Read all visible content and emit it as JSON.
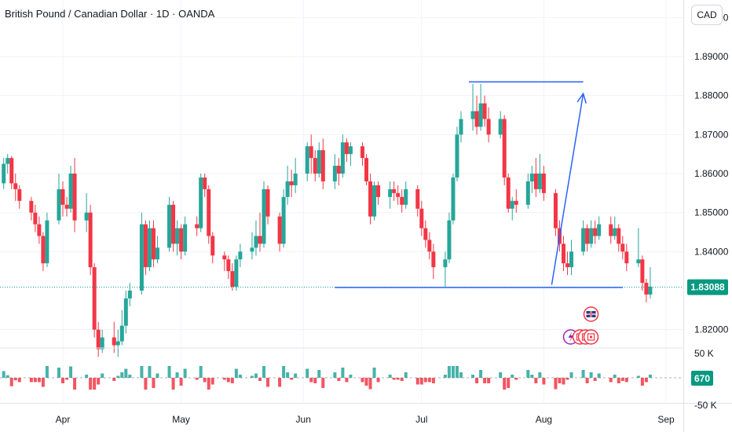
{
  "header": {
    "title": "British Pound / Canadian Dollar · 1D · OANDA",
    "currency_button": "CAD"
  },
  "colors": {
    "up": "#26a69a",
    "down": "#f23645",
    "drawing": "#2962ff",
    "price_tag": "#089981",
    "grid": "#f0f3fa"
  },
  "chart_data": {
    "type": "candlestick",
    "y_axis": {
      "range": [
        1.8155,
        1.9045
      ],
      "ticks": [
        "1.90000",
        "1.89000",
        "1.88000",
        "1.87000",
        "1.86000",
        "1.85000",
        "1.84000",
        "1.82000"
      ]
    },
    "x_axis": {
      "ticks": [
        {
          "label": "Apr",
          "date": "2025-04-01"
        },
        {
          "label": "May",
          "date": "2025-05-01"
        },
        {
          "label": "Jun",
          "date": "2025-06-01"
        },
        {
          "label": "Jul",
          "date": "2025-07-01"
        },
        {
          "label": "Aug",
          "date": "2025-08-01"
        },
        {
          "label": "Sep",
          "date": "2025-09-01"
        }
      ]
    },
    "last_price": "1.83088",
    "volume": {
      "ticks": [
        "50 K",
        "-50 K"
      ],
      "last_value": "670"
    },
    "annotations": {
      "resistance_level": 1.8835,
      "support_level": 1.8308,
      "target_arrow": {
        "from": [
          "2025-08-03",
          1.8315
        ],
        "to": [
          "2025-08-11",
          1.8805
        ]
      }
    },
    "candles": [
      [
        "2025-03-13",
        1.858,
        1.862,
        1.854,
        1.86
      ],
      [
        "2025-03-14",
        1.86,
        1.861,
        1.8565,
        1.8575
      ],
      [
        "2025-03-17",
        1.8575,
        1.864,
        1.856,
        1.8625
      ],
      [
        "2025-03-18",
        1.8625,
        1.865,
        1.86,
        1.864
      ],
      [
        "2025-03-19",
        1.864,
        1.8645,
        1.856,
        1.8575
      ],
      [
        "2025-03-20",
        1.8575,
        1.86,
        1.853,
        1.856
      ],
      [
        "2025-03-21",
        1.856,
        1.857,
        1.851,
        1.853
      ],
      [
        "2025-03-24",
        1.853,
        1.854,
        1.848,
        1.85
      ],
      [
        "2025-03-25",
        1.85,
        1.852,
        1.845,
        1.847
      ],
      [
        "2025-03-26",
        1.847,
        1.849,
        1.842,
        1.844
      ],
      [
        "2025-03-27",
        1.844,
        1.845,
        1.835,
        1.837
      ],
      [
        "2025-03-28",
        1.837,
        1.85,
        1.836,
        1.848
      ],
      [
        "2025-03-31",
        1.848,
        1.86,
        1.847,
        1.856
      ],
      [
        "2025-04-01",
        1.856,
        1.858,
        1.849,
        1.852
      ],
      [
        "2025-04-02",
        1.852,
        1.854,
        1.849,
        1.851
      ],
      [
        "2025-04-03",
        1.851,
        1.862,
        1.85,
        1.86
      ],
      [
        "2025-04-04",
        1.86,
        1.864,
        1.845,
        1.848
      ],
      [
        "2025-04-07",
        1.848,
        1.855,
        1.845,
        1.85
      ],
      [
        "2025-04-08",
        1.85,
        1.852,
        1.834,
        1.836
      ],
      [
        "2025-04-09",
        1.836,
        1.837,
        1.818,
        1.82
      ],
      [
        "2025-04-10",
        1.82,
        1.822,
        1.813,
        1.815
      ],
      [
        "2025-04-11",
        1.815,
        1.82,
        1.814,
        1.818
      ],
      [
        "2025-04-14",
        1.818,
        1.822,
        1.814,
        1.816
      ],
      [
        "2025-04-15",
        1.816,
        1.82,
        1.813,
        1.817
      ],
      [
        "2025-04-16",
        1.817,
        1.825,
        1.816,
        1.821
      ],
      [
        "2025-04-17",
        1.821,
        1.83,
        1.819,
        1.828
      ],
      [
        "2025-04-18",
        1.828,
        1.832,
        1.826,
        1.83
      ],
      [
        "2025-04-21",
        1.83,
        1.85,
        1.829,
        1.847
      ],
      [
        "2025-04-22",
        1.847,
        1.848,
        1.834,
        1.836
      ],
      [
        "2025-04-23",
        1.836,
        1.848,
        1.835,
        1.846
      ],
      [
        "2025-04-24",
        1.846,
        1.848,
        1.836,
        1.838
      ],
      [
        "2025-04-25",
        1.838,
        1.844,
        1.837,
        1.841
      ],
      [
        "2025-04-28",
        1.841,
        1.854,
        1.84,
        1.852
      ],
      [
        "2025-04-29",
        1.852,
        1.853,
        1.84,
        1.842
      ],
      [
        "2025-04-30",
        1.842,
        1.848,
        1.839,
        1.846
      ],
      [
        "2025-05-01",
        1.846,
        1.847,
        1.838,
        1.84
      ],
      [
        "2025-05-02",
        1.84,
        1.849,
        1.839,
        1.847
      ],
      [
        "2025-05-05",
        1.847,
        1.849,
        1.844,
        1.846
      ],
      [
        "2025-05-06",
        1.846,
        1.86,
        1.845,
        1.859
      ],
      [
        "2025-05-07",
        1.859,
        1.86,
        1.854,
        1.856
      ],
      [
        "2025-05-08",
        1.856,
        1.857,
        1.842,
        1.844
      ],
      [
        "2025-05-09",
        1.844,
        1.845,
        1.837,
        1.839
      ],
      [
        "2025-05-12",
        1.839,
        1.84,
        1.835,
        1.838
      ],
      [
        "2025-05-13",
        1.838,
        1.839,
        1.833,
        1.835
      ],
      [
        "2025-05-14",
        1.835,
        1.837,
        1.83,
        1.831
      ],
      [
        "2025-05-15",
        1.831,
        1.839,
        1.83,
        1.838
      ],
      [
        "2025-05-16",
        1.838,
        1.842,
        1.836,
        1.84
      ],
      [
        "2025-05-19",
        1.84,
        1.845,
        1.838,
        1.841
      ],
      [
        "2025-05-20",
        1.841,
        1.848,
        1.839,
        1.844
      ],
      [
        "2025-05-21",
        1.844,
        1.85,
        1.84,
        1.842
      ],
      [
        "2025-05-22",
        1.842,
        1.858,
        1.841,
        1.856
      ],
      [
        "2025-05-23",
        1.856,
        1.857,
        1.847,
        1.849
      ],
      [
        "2025-05-26",
        1.849,
        1.85,
        1.84,
        1.842
      ],
      [
        "2025-05-27",
        1.842,
        1.856,
        1.841,
        1.854
      ],
      [
        "2025-05-28",
        1.854,
        1.862,
        1.852,
        1.858
      ],
      [
        "2025-05-29",
        1.858,
        1.861,
        1.854,
        1.857
      ],
      [
        "2025-05-30",
        1.857,
        1.864,
        1.855,
        1.86
      ],
      [
        "2025-06-02",
        1.86,
        1.868,
        1.858,
        1.867
      ],
      [
        "2025-06-03",
        1.867,
        1.87,
        1.86,
        1.864
      ],
      [
        "2025-06-04",
        1.864,
        1.866,
        1.858,
        1.86
      ],
      [
        "2025-06-05",
        1.86,
        1.868,
        1.859,
        1.866
      ],
      [
        "2025-06-06",
        1.866,
        1.869,
        1.856,
        1.858
      ],
      [
        "2025-06-09",
        1.858,
        1.865,
        1.856,
        1.862
      ],
      [
        "2025-06-10",
        1.862,
        1.864,
        1.857,
        1.86
      ],
      [
        "2025-06-11",
        1.86,
        1.87,
        1.859,
        1.868
      ],
      [
        "2025-06-12",
        1.868,
        1.869,
        1.863,
        1.865
      ],
      [
        "2025-06-13",
        1.865,
        1.868,
        1.862,
        1.867
      ],
      [
        "2025-06-16",
        1.867,
        1.868,
        1.862,
        1.864
      ],
      [
        "2025-06-17",
        1.864,
        1.865,
        1.857,
        1.858
      ],
      [
        "2025-06-18",
        1.858,
        1.86,
        1.847,
        1.849
      ],
      [
        "2025-06-19",
        1.849,
        1.858,
        1.848,
        1.857
      ],
      [
        "2025-06-20",
        1.857,
        1.858,
        1.852,
        1.854
      ],
      [
        "2025-06-23",
        1.854,
        1.858,
        1.851,
        1.856
      ],
      [
        "2025-06-24",
        1.856,
        1.858,
        1.853,
        1.855
      ],
      [
        "2025-06-25",
        1.855,
        1.857,
        1.852,
        1.854
      ],
      [
        "2025-06-26",
        1.854,
        1.856,
        1.85,
        1.852
      ],
      [
        "2025-06-27",
        1.852,
        1.858,
        1.851,
        1.856
      ],
      [
        "2025-06-30",
        1.856,
        1.857,
        1.849,
        1.851
      ],
      [
        "2025-07-01",
        1.851,
        1.853,
        1.844,
        1.846
      ],
      [
        "2025-07-02",
        1.846,
        1.848,
        1.841,
        1.843
      ],
      [
        "2025-07-03",
        1.843,
        1.845,
        1.838,
        1.84
      ],
      [
        "2025-07-04",
        1.84,
        1.842,
        1.833,
        1.836
      ],
      [
        "2025-07-07",
        1.836,
        1.84,
        1.831,
        1.838
      ],
      [
        "2025-07-08",
        1.838,
        1.85,
        1.837,
        1.848
      ],
      [
        "2025-07-09",
        1.848,
        1.86,
        1.847,
        1.859
      ],
      [
        "2025-07-10",
        1.859,
        1.872,
        1.858,
        1.87
      ],
      [
        "2025-07-11",
        1.87,
        1.876,
        1.868,
        1.874
      ],
      [
        "2025-07-14",
        1.874,
        1.883,
        1.871,
        1.876
      ],
      [
        "2025-07-15",
        1.876,
        1.88,
        1.87,
        1.872
      ],
      [
        "2025-07-16",
        1.872,
        1.883,
        1.871,
        1.878
      ],
      [
        "2025-07-17",
        1.878,
        1.88,
        1.872,
        1.874
      ],
      [
        "2025-07-18",
        1.874,
        1.877,
        1.868,
        1.87
      ],
      [
        "2025-07-21",
        1.87,
        1.876,
        1.869,
        1.874
      ],
      [
        "2025-07-22",
        1.874,
        1.875,
        1.857,
        1.859
      ],
      [
        "2025-07-23",
        1.859,
        1.86,
        1.85,
        1.851
      ],
      [
        "2025-07-24",
        1.851,
        1.854,
        1.848,
        1.853
      ],
      [
        "2025-07-25",
        1.853,
        1.856,
        1.85,
        1.852
      ],
      [
        "2025-07-28",
        1.852,
        1.86,
        1.851,
        1.858
      ],
      [
        "2025-07-29",
        1.858,
        1.862,
        1.855,
        1.86
      ],
      [
        "2025-07-30",
        1.86,
        1.864,
        1.854,
        1.856
      ],
      [
        "2025-07-31",
        1.856,
        1.865,
        1.855,
        1.86
      ],
      [
        "2025-08-01",
        1.86,
        1.862,
        1.853,
        1.855
      ],
      [
        "2025-08-04",
        1.855,
        1.856,
        1.844,
        1.846
      ],
      [
        "2025-08-05",
        1.846,
        1.848,
        1.84,
        1.842
      ],
      [
        "2025-08-06",
        1.842,
        1.844,
        1.835,
        1.837
      ],
      [
        "2025-08-07",
        1.837,
        1.84,
        1.834,
        1.836
      ],
      [
        "2025-08-08",
        1.836,
        1.843,
        1.834,
        1.84
      ],
      [
        "2025-08-11",
        1.84,
        1.848,
        1.839,
        1.846
      ],
      [
        "2025-08-12",
        1.846,
        1.847,
        1.84,
        1.842
      ],
      [
        "2025-08-13",
        1.842,
        1.848,
        1.841,
        1.846
      ],
      [
        "2025-08-14",
        1.846,
        1.848,
        1.842,
        1.844
      ],
      [
        "2025-08-15",
        1.844,
        1.849,
        1.843,
        1.847
      ],
      [
        "2025-08-18",
        1.847,
        1.849,
        1.842,
        1.844
      ],
      [
        "2025-08-19",
        1.844,
        1.849,
        1.843,
        1.846
      ],
      [
        "2025-08-20",
        1.846,
        1.847,
        1.84,
        1.842
      ],
      [
        "2025-08-21",
        1.842,
        1.844,
        1.838,
        1.84
      ],
      [
        "2025-08-22",
        1.84,
        1.842,
        1.835,
        1.837
      ],
      [
        "2025-08-25",
        1.837,
        1.846,
        1.836,
        1.838
      ],
      [
        "2025-08-26",
        1.838,
        1.839,
        1.83,
        1.832
      ],
      [
        "2025-08-27",
        1.832,
        1.833,
        1.827,
        1.829
      ],
      [
        "2025-08-28",
        1.829,
        1.836,
        1.828,
        1.831
      ]
    ]
  }
}
